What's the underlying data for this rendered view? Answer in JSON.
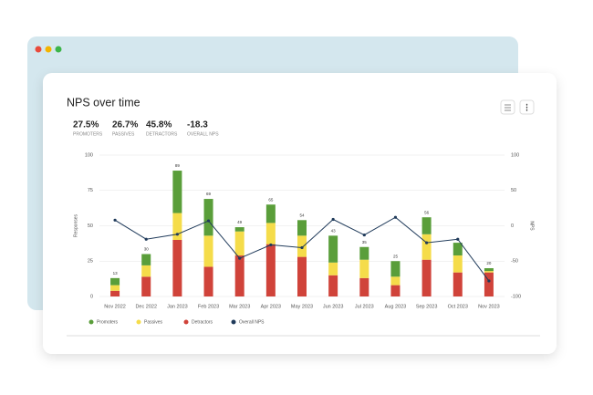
{
  "summary": [
    {
      "value": "27.5%",
      "label": "PROMOTERS"
    },
    {
      "value": "26.7%",
      "label": "PASSIVES"
    },
    {
      "value": "45.8%",
      "label": "DETRACTORS"
    },
    {
      "value": "-18.3",
      "label": "OVERALL NPS"
    }
  ],
  "chart_data": {
    "type": "bar",
    "title": "NPS over time",
    "stacked": true,
    "ylabel": "Responses",
    "y2label": "NPS",
    "categories": [
      "Nov 2022",
      "Dec 2022",
      "Jan 2023",
      "Feb 2023",
      "Mar 2023",
      "Apr 2023",
      "May 2023",
      "Jun 2023",
      "Jul 2023",
      "Aug 2023",
      "Sep 2023",
      "Oct 2023",
      "Nov 2023"
    ],
    "series": [
      {
        "name": "Promoters",
        "color": "#5a9e3a",
        "values": [
          5,
          8,
          30,
          26,
          3,
          13,
          11,
          19,
          9,
          11,
          12,
          9,
          2
        ]
      },
      {
        "name": "Passives",
        "color": "#f5dc4a",
        "values": [
          4,
          8,
          19,
          22,
          17,
          15,
          15,
          9,
          13,
          6,
          18,
          12,
          1
        ]
      },
      {
        "name": "Detractors",
        "color": "#d0433a",
        "values": [
          4,
          14,
          40,
          21,
          29,
          37,
          28,
          15,
          13,
          8,
          26,
          17,
          17
        ]
      },
      {
        "name": "Overall NPS",
        "color": "#1f3a5a",
        "type": "line",
        "axis": "y2",
        "values": [
          8,
          -19,
          -12,
          7,
          -46,
          -27,
          -31,
          9,
          -13,
          12,
          -24,
          -19,
          -78
        ]
      }
    ],
    "totals": [
      13,
      30,
      89,
      69,
      49,
      65,
      54,
      43,
      35,
      25,
      56,
      null,
      20
    ],
    "ylim": [
      0,
      100
    ],
    "yticks": [
      0,
      25,
      50,
      75,
      100
    ],
    "y2lim": [
      -100,
      100
    ],
    "y2ticks": [
      -100,
      -50,
      0,
      50,
      100
    ],
    "grid": true,
    "legend": "bottom"
  }
}
